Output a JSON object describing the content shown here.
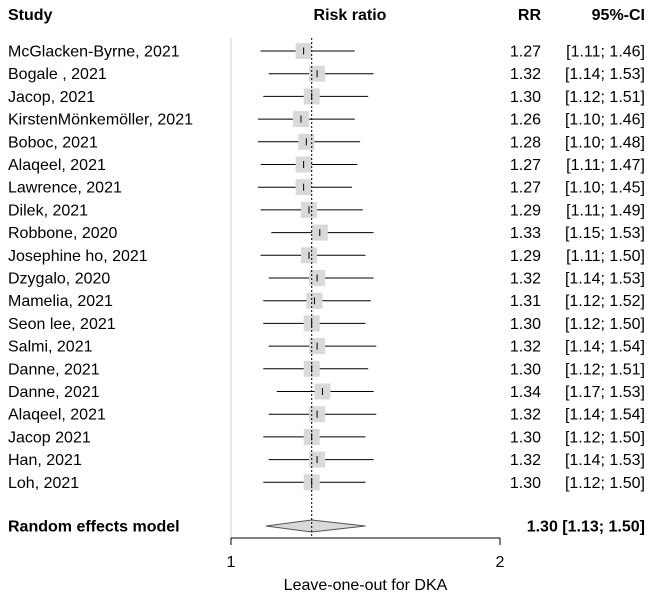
{
  "chart_data": {
    "type": "forest",
    "headers": {
      "study": "Study",
      "plot": "Risk ratio",
      "rr": "RR",
      "ci": "95%-CI"
    },
    "studies": [
      {
        "label": "McGlacken-Byrne, 2021",
        "rr": 1.27,
        "lower": 1.11,
        "upper": 1.46,
        "rr_text": "1.27",
        "ci_text": "[1.11; 1.46]"
      },
      {
        "label": "Bogale , 2021",
        "rr": 1.32,
        "lower": 1.14,
        "upper": 1.53,
        "rr_text": "1.32",
        "ci_text": "[1.14; 1.53]"
      },
      {
        "label": "Jacop, 2021",
        "rr": 1.3,
        "lower": 1.12,
        "upper": 1.51,
        "rr_text": "1.30",
        "ci_text": "[1.12; 1.51]"
      },
      {
        "label": "KirstenMönkemöller, 2021",
        "rr": 1.26,
        "lower": 1.1,
        "upper": 1.46,
        "rr_text": "1.26",
        "ci_text": "[1.10; 1.46]"
      },
      {
        "label": "Boboc, 2021",
        "rr": 1.28,
        "lower": 1.1,
        "upper": 1.48,
        "rr_text": "1.28",
        "ci_text": "[1.10; 1.48]"
      },
      {
        "label": "Alaqeel, 2021",
        "rr": 1.27,
        "lower": 1.11,
        "upper": 1.47,
        "rr_text": "1.27",
        "ci_text": "[1.11; 1.47]"
      },
      {
        "label": "Lawrence, 2021",
        "rr": 1.27,
        "lower": 1.1,
        "upper": 1.45,
        "rr_text": "1.27",
        "ci_text": "[1.10; 1.45]"
      },
      {
        "label": "Dilek, 2021",
        "rr": 1.29,
        "lower": 1.11,
        "upper": 1.49,
        "rr_text": "1.29",
        "ci_text": "[1.11; 1.49]"
      },
      {
        "label": "Robbone, 2020",
        "rr": 1.33,
        "lower": 1.15,
        "upper": 1.53,
        "rr_text": "1.33",
        "ci_text": "[1.15; 1.53]"
      },
      {
        "label": "Josephine ho, 2021",
        "rr": 1.29,
        "lower": 1.11,
        "upper": 1.5,
        "rr_text": "1.29",
        "ci_text": "[1.11; 1.50]"
      },
      {
        "label": "Dzygalo, 2020",
        "rr": 1.32,
        "lower": 1.14,
        "upper": 1.53,
        "rr_text": "1.32",
        "ci_text": "[1.14; 1.53]"
      },
      {
        "label": "Mamelia, 2021",
        "rr": 1.31,
        "lower": 1.12,
        "upper": 1.52,
        "rr_text": "1.31",
        "ci_text": "[1.12; 1.52]"
      },
      {
        "label": "Seon lee, 2021",
        "rr": 1.3,
        "lower": 1.12,
        "upper": 1.5,
        "rr_text": "1.30",
        "ci_text": "[1.12; 1.50]"
      },
      {
        "label": "Salmi, 2021",
        "rr": 1.32,
        "lower": 1.14,
        "upper": 1.54,
        "rr_text": "1.32",
        "ci_text": "[1.14; 1.54]"
      },
      {
        "label": "Danne, 2021",
        "rr": 1.3,
        "lower": 1.12,
        "upper": 1.51,
        "rr_text": "1.30",
        "ci_text": "[1.12; 1.51]"
      },
      {
        "label": "Danne, 2021",
        "rr": 1.34,
        "lower": 1.17,
        "upper": 1.53,
        "rr_text": "1.34",
        "ci_text": "[1.17; 1.53]"
      },
      {
        "label": "Alaqeel, 2021",
        "rr": 1.32,
        "lower": 1.14,
        "upper": 1.54,
        "rr_text": "1.32",
        "ci_text": "[1.14; 1.54]"
      },
      {
        "label": "Jacop 2021",
        "rr": 1.3,
        "lower": 1.12,
        "upper": 1.5,
        "rr_text": "1.30",
        "ci_text": "[1.12; 1.50]"
      },
      {
        "label": "Han, 2021",
        "rr": 1.32,
        "lower": 1.14,
        "upper": 1.53,
        "rr_text": "1.32",
        "ci_text": "[1.14; 1.53]"
      },
      {
        "label": "Loh, 2021",
        "rr": 1.3,
        "lower": 1.12,
        "upper": 1.5,
        "rr_text": "1.30",
        "ci_text": "[1.12; 1.50]"
      }
    ],
    "summary": {
      "label": "Random effects model",
      "rr": 1.3,
      "lower": 1.13,
      "upper": 1.5,
      "text": "1.30 [1.13; 1.50]"
    },
    "x_axis": {
      "ticks": [
        1,
        2
      ],
      "tick_labels": [
        "1",
        "2"
      ],
      "label": "Leave-one-out for DKA",
      "range": [
        1,
        2
      ]
    },
    "reference_line": 1.3,
    "colors": {
      "square": "#d9d9d9",
      "diamond": "#d9d9d9",
      "line": "#000000"
    }
  }
}
